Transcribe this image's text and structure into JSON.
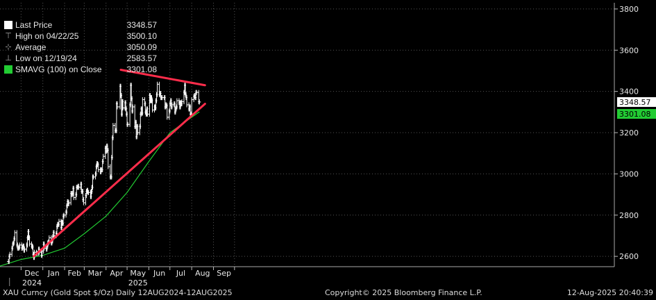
{
  "chart_data": {
    "type": "line",
    "ylim": [
      2550,
      3830
    ],
    "y_ticks": [
      2600,
      2800,
      3000,
      3200,
      3400,
      3600,
      3800
    ],
    "x_month_labels": [
      {
        "label": "Dec",
        "x": 0
      },
      {
        "label": "Jan",
        "x": 1
      },
      {
        "label": "Feb",
        "x": 2
      },
      {
        "label": "Mar",
        "x": 3
      },
      {
        "label": "Apr",
        "x": 4
      },
      {
        "label": "May",
        "x": 5
      },
      {
        "label": "Jun",
        "x": 6
      },
      {
        "label": "Jul",
        "x": 7
      },
      {
        "label": "Aug",
        "x": 8
      },
      {
        "label": "Sep",
        "x": 9
      }
    ],
    "x_year_labels": [
      {
        "label": "2024",
        "x": 0
      },
      {
        "label": "2025",
        "x": 5
      }
    ],
    "series": [
      {
        "name": "Last Price",
        "color": "#ffffff",
        "points": [
          [
            "2024-11-13",
            2575
          ],
          [
            "2024-11-14",
            2600
          ],
          [
            "2024-11-15",
            2610
          ],
          [
            "2024-11-18",
            2640
          ],
          [
            "2024-11-19",
            2660
          ],
          [
            "2024-11-20",
            2665
          ],
          [
            "2024-11-21",
            2685
          ],
          [
            "2024-11-22",
            2715
          ],
          [
            "2024-11-25",
            2655
          ],
          [
            "2024-11-26",
            2640
          ],
          [
            "2024-11-27",
            2640
          ],
          [
            "2024-11-28",
            2645
          ],
          [
            "2024-11-29",
            2655
          ],
          [
            "2024-12-02",
            2640
          ],
          [
            "2024-12-03",
            2645
          ],
          [
            "2024-12-04",
            2650
          ],
          [
            "2024-12-05",
            2630
          ],
          [
            "2024-12-06",
            2635
          ],
          [
            "2024-12-09",
            2655
          ],
          [
            "2024-12-10",
            2690
          ],
          [
            "2024-12-11",
            2720
          ],
          [
            "2024-12-12",
            2690
          ],
          [
            "2024-12-13",
            2660
          ],
          [
            "2024-12-16",
            2650
          ],
          [
            "2024-12-17",
            2645
          ],
          [
            "2024-12-18",
            2610
          ],
          [
            "2024-12-19",
            2595
          ],
          [
            "2024-12-20",
            2620
          ],
          [
            "2024-12-23",
            2615
          ],
          [
            "2024-12-24",
            2615
          ],
          [
            "2024-12-26",
            2635
          ],
          [
            "2024-12-27",
            2620
          ],
          [
            "2024-12-30",
            2605
          ],
          [
            "2024-12-31",
            2625
          ],
          [
            "2025-01-02",
            2660
          ],
          [
            "2025-01-03",
            2640
          ],
          [
            "2025-01-06",
            2635
          ],
          [
            "2025-01-07",
            2650
          ],
          [
            "2025-01-08",
            2665
          ],
          [
            "2025-01-09",
            2670
          ],
          [
            "2025-01-10",
            2690
          ],
          [
            "2025-01-13",
            2665
          ],
          [
            "2025-01-14",
            2675
          ],
          [
            "2025-01-15",
            2695
          ],
          [
            "2025-01-16",
            2715
          ],
          [
            "2025-01-17",
            2700
          ],
          [
            "2025-01-20",
            2710
          ],
          [
            "2025-01-21",
            2745
          ],
          [
            "2025-01-22",
            2755
          ],
          [
            "2025-01-23",
            2755
          ],
          [
            "2025-01-24",
            2770
          ],
          [
            "2025-01-27",
            2740
          ],
          [
            "2025-01-28",
            2765
          ],
          [
            "2025-01-29",
            2760
          ],
          [
            "2025-01-30",
            2795
          ],
          [
            "2025-01-31",
            2800
          ],
          [
            "2025-02-03",
            2815
          ],
          [
            "2025-02-04",
            2845
          ],
          [
            "2025-02-05",
            2865
          ],
          [
            "2025-02-06",
            2855
          ],
          [
            "2025-02-07",
            2860
          ],
          [
            "2025-02-10",
            2905
          ],
          [
            "2025-02-11",
            2900
          ],
          [
            "2025-02-12",
            2905
          ],
          [
            "2025-02-13",
            2930
          ],
          [
            "2025-02-14",
            2885
          ],
          [
            "2025-02-17",
            2900
          ],
          [
            "2025-02-18",
            2935
          ],
          [
            "2025-02-19",
            2935
          ],
          [
            "2025-02-20",
            2940
          ],
          [
            "2025-02-21",
            2935
          ],
          [
            "2025-02-24",
            2950
          ],
          [
            "2025-02-25",
            2915
          ],
          [
            "2025-02-26",
            2915
          ],
          [
            "2025-02-27",
            2875
          ],
          [
            "2025-02-28",
            2860
          ],
          [
            "2025-03-03",
            2895
          ],
          [
            "2025-03-04",
            2915
          ],
          [
            "2025-03-05",
            2920
          ],
          [
            "2025-03-06",
            2910
          ],
          [
            "2025-03-07",
            2910
          ],
          [
            "2025-03-10",
            2890
          ],
          [
            "2025-03-11",
            2915
          ],
          [
            "2025-03-12",
            2935
          ],
          [
            "2025-03-13",
            2985
          ],
          [
            "2025-03-14",
            2985
          ],
          [
            "2025-03-17",
            3000
          ],
          [
            "2025-03-18",
            3035
          ],
          [
            "2025-03-19",
            3050
          ],
          [
            "2025-03-20",
            3045
          ],
          [
            "2025-03-21",
            3020
          ],
          [
            "2025-03-24",
            3010
          ],
          [
            "2025-03-25",
            3020
          ],
          [
            "2025-03-26",
            3020
          ],
          [
            "2025-03-27",
            3060
          ],
          [
            "2025-03-28",
            3085
          ],
          [
            "2025-03-31",
            3125
          ],
          [
            "2025-04-01",
            3110
          ],
          [
            "2025-04-02",
            3135
          ],
          [
            "2025-04-03",
            3115
          ],
          [
            "2025-04-04",
            3035
          ],
          [
            "2025-04-07",
            2985
          ],
          [
            "2025-04-08",
            2985
          ],
          [
            "2025-04-09",
            3080
          ],
          [
            "2025-04-10",
            3175
          ],
          [
            "2025-04-11",
            3235
          ],
          [
            "2025-04-14",
            3210
          ],
          [
            "2025-04-15",
            3210
          ],
          [
            "2025-04-16",
            3340
          ],
          [
            "2025-04-17",
            3325
          ],
          [
            "2025-04-21",
            3425
          ],
          [
            "2025-04-22",
            3380
          ],
          [
            "2025-04-23",
            3290
          ],
          [
            "2025-04-24",
            3350
          ],
          [
            "2025-04-25",
            3320
          ],
          [
            "2025-04-28",
            3345
          ],
          [
            "2025-04-29",
            3315
          ],
          [
            "2025-04-30",
            3290
          ],
          [
            "2025-05-01",
            3240
          ],
          [
            "2025-05-02",
            3240
          ],
          [
            "2025-05-05",
            3335
          ],
          [
            "2025-05-06",
            3430
          ],
          [
            "2025-05-07",
            3365
          ],
          [
            "2025-05-08",
            3305
          ],
          [
            "2025-05-09",
            3325
          ],
          [
            "2025-05-12",
            3230
          ],
          [
            "2025-05-13",
            3250
          ],
          [
            "2025-05-14",
            3180
          ],
          [
            "2025-05-15",
            3230
          ],
          [
            "2025-05-16",
            3200
          ],
          [
            "2025-05-19",
            3230
          ],
          [
            "2025-05-20",
            3290
          ],
          [
            "2025-05-21",
            3315
          ],
          [
            "2025-05-22",
            3295
          ],
          [
            "2025-05-23",
            3360
          ],
          [
            "2025-05-26",
            3340
          ],
          [
            "2025-05-27",
            3300
          ],
          [
            "2025-05-28",
            3290
          ],
          [
            "2025-05-29",
            3315
          ],
          [
            "2025-05-30",
            3290
          ],
          [
            "2025-06-02",
            3380
          ],
          [
            "2025-06-03",
            3355
          ],
          [
            "2025-06-04",
            3370
          ],
          [
            "2025-06-05",
            3355
          ],
          [
            "2025-06-06",
            3310
          ],
          [
            "2025-06-09",
            3325
          ],
          [
            "2025-06-10",
            3320
          ],
          [
            "2025-06-11",
            3355
          ],
          [
            "2025-06-12",
            3385
          ],
          [
            "2025-06-13",
            3435
          ],
          [
            "2025-06-16",
            3385
          ],
          [
            "2025-06-17",
            3390
          ],
          [
            "2025-06-18",
            3370
          ],
          [
            "2025-06-19",
            3370
          ],
          [
            "2025-06-20",
            3370
          ],
          [
            "2025-06-23",
            3370
          ],
          [
            "2025-06-24",
            3325
          ],
          [
            "2025-06-25",
            3335
          ],
          [
            "2025-06-26",
            3330
          ],
          [
            "2025-06-27",
            3275
          ],
          [
            "2025-06-30",
            3305
          ],
          [
            "2025-07-01",
            3340
          ],
          [
            "2025-07-02",
            3355
          ],
          [
            "2025-07-03",
            3325
          ],
          [
            "2025-07-04",
            3335
          ],
          [
            "2025-07-07",
            3340
          ],
          [
            "2025-07-08",
            3300
          ],
          [
            "2025-07-09",
            3315
          ],
          [
            "2025-07-10",
            3325
          ],
          [
            "2025-07-11",
            3355
          ],
          [
            "2025-07-14",
            3345
          ],
          [
            "2025-07-15",
            3325
          ],
          [
            "2025-07-16",
            3345
          ],
          [
            "2025-07-17",
            3340
          ],
          [
            "2025-07-18",
            3350
          ],
          [
            "2025-07-21",
            3395
          ],
          [
            "2025-07-22",
            3430
          ],
          [
            "2025-07-23",
            3385
          ],
          [
            "2025-07-24",
            3370
          ],
          [
            "2025-07-25",
            3335
          ],
          [
            "2025-07-28",
            3315
          ],
          [
            "2025-07-29",
            3325
          ],
          [
            "2025-07-30",
            3290
          ],
          [
            "2025-07-31",
            3290
          ],
          [
            "2025-08-01",
            3360
          ],
          [
            "2025-08-04",
            3375
          ],
          [
            "2025-08-05",
            3380
          ],
          [
            "2025-08-06",
            3370
          ],
          [
            "2025-08-07",
            3395
          ],
          [
            "2025-08-08",
            3395
          ],
          [
            "2025-08-11",
            3350
          ],
          [
            "2025-08-12",
            3348.57
          ]
        ]
      },
      {
        "name": "SMAVG (100)  on Close",
        "color": "#22cc33",
        "points": [
          [
            "2024-11-01",
            2553
          ],
          [
            "2024-12-01",
            2585
          ],
          [
            "2025-01-01",
            2605
          ],
          [
            "2025-02-01",
            2640
          ],
          [
            "2025-03-01",
            2710
          ],
          [
            "2025-04-01",
            2795
          ],
          [
            "2025-05-01",
            2910
          ],
          [
            "2025-06-01",
            3060
          ],
          [
            "2025-07-01",
            3200
          ],
          [
            "2025-08-12",
            3301.08
          ]
        ]
      }
    ],
    "annotations": [
      {
        "type": "trendline",
        "color": "#ff2d4b",
        "from": [
          "2024-12-19",
          2600
        ],
        "to": [
          "2025-08-20",
          3340
        ]
      },
      {
        "type": "trendline",
        "color": "#ff2d4b",
        "from": [
          "2025-04-22",
          3505
        ],
        "to": [
          "2025-08-20",
          3430
        ]
      }
    ],
    "last_price_label": "3348.57",
    "smavg_label": "3301.08"
  },
  "legend": [
    {
      "name": "Last Price",
      "value": "3348.57",
      "icon": "white-square-icon"
    },
    {
      "name": "High on 04/22/25",
      "value": "3500.10",
      "icon": "high-marker-icon"
    },
    {
      "name": "Average",
      "value": "3050.09",
      "icon": "average-marker-icon"
    },
    {
      "name": "Low on 12/19/24",
      "value": "2583.57",
      "icon": "low-marker-icon"
    },
    {
      "name": "SMAVG (100)  on Close",
      "value": "3301.08",
      "icon": "green-square-icon"
    }
  ],
  "footer": {
    "left": "XAU Curncy (Gold Spot  $/Oz)  Daily 12AUG2024-12AUG2025",
    "center": "Copyright© 2025 Bloomberg Finance L.P.",
    "right": "12-Aug-2025 20:40:39"
  },
  "colors": {
    "background": "#000000",
    "price": "#ffffff",
    "sma": "#22cc33",
    "trendline": "#ff2d4b",
    "grid": "#555555"
  }
}
